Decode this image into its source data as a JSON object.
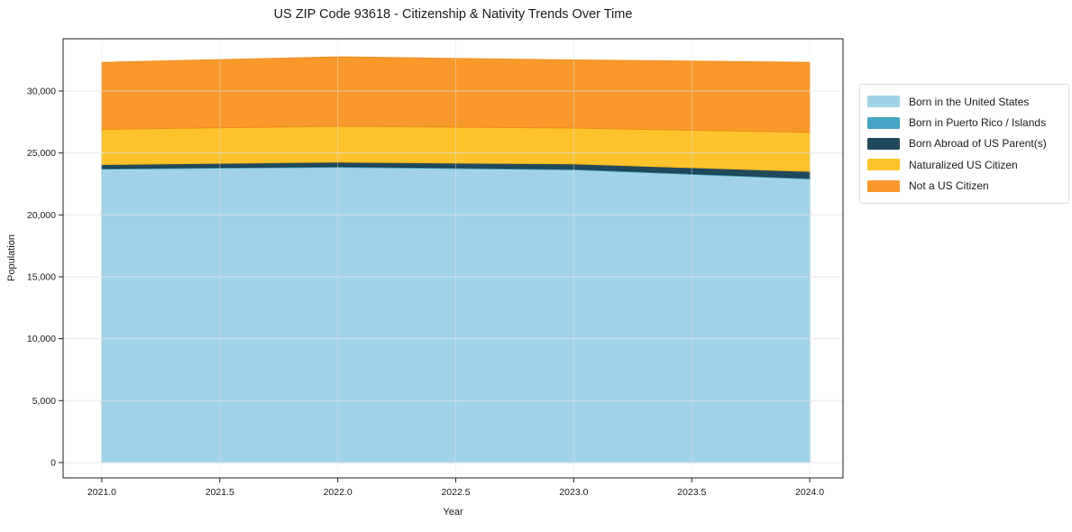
{
  "chart_data": {
    "type": "area",
    "stacked": true,
    "title": "US ZIP Code 93618 - Citizenship & Nativity Trends Over Time",
    "xlabel": "Year",
    "ylabel": "Population",
    "x": [
      2021,
      2022,
      2023,
      2024
    ],
    "series": [
      {
        "name": "Born in the United States",
        "color": "#A0D3E8",
        "edge": "#7FBFDD",
        "values": [
          23700,
          23850,
          23650,
          22900
        ]
      },
      {
        "name": "Born in Puerto Rico / Islands",
        "color": "#46A5C4",
        "edge": "#3C93B0",
        "values": [
          60,
          60,
          60,
          60
        ]
      },
      {
        "name": "Born Abroad of US Parent(s)",
        "color": "#21495C",
        "edge": "#1B3D4D",
        "values": [
          300,
          350,
          400,
          550
        ]
      },
      {
        "name": "Naturalized US Citizen",
        "color": "#FCC32D",
        "edge": "#F2B51B",
        "values": [
          2850,
          2900,
          2900,
          3150
        ]
      },
      {
        "name": "Not a US Citizen",
        "color": "#F9992B",
        "edge": "#EF8A1A",
        "values": [
          5400,
          5600,
          5500,
          5650
        ]
      }
    ],
    "x_tick_values": [
      2021.0,
      2021.5,
      2022.0,
      2022.5,
      2023.0,
      2023.5,
      2024.0
    ],
    "x_tick_labels": [
      "2021.0",
      "2021.5",
      "2022.0",
      "2022.5",
      "2023.0",
      "2023.5",
      "2024.0"
    ],
    "y_tick_values": [
      0,
      5000,
      10000,
      15000,
      20000,
      25000,
      30000
    ],
    "y_tick_labels": [
      "0",
      "5,000",
      "10,000",
      "15,000",
      "20,000",
      "25,000",
      "30,000"
    ],
    "xlim": [
      2020.836,
      2024.141
    ],
    "ylim": [
      -1240,
      34220
    ],
    "grid": true,
    "legend_position": "right",
    "axis_color": "#1f1f1f",
    "grid_color": "#e3e3e3",
    "text_color": "#1a1a1a"
  }
}
